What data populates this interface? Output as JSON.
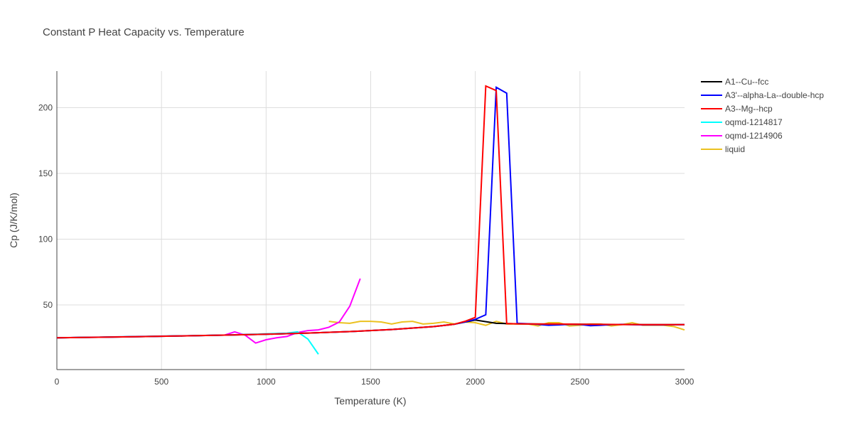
{
  "chart_data": {
    "type": "line",
    "title": "Constant P Heat Capacity vs. Temperature",
    "xlabel": "Temperature (K)",
    "ylabel": "Cp (J/K/mol)",
    "xlim": [
      0,
      3000
    ],
    "ylim": [
      0,
      228
    ],
    "xticks": [
      0,
      500,
      1000,
      1500,
      2000,
      2500,
      3000
    ],
    "yticks": [
      50,
      100,
      150,
      200
    ],
    "grid": true,
    "legend": "top-right",
    "series": [
      {
        "name": "A1--Cu--fcc",
        "color": "#000000",
        "x": [
          0,
          200,
          400,
          600,
          800,
          1000,
          1200,
          1400,
          1600,
          1800,
          1900,
          2000,
          2100,
          2200,
          2400,
          2600,
          2800,
          3000
        ],
        "y": [
          25,
          25.4,
          25.9,
          26.4,
          27,
          27.7,
          28.6,
          29.7,
          31.3,
          33.5,
          35.3,
          38.5,
          36,
          35.6,
          35.4,
          35.2,
          35,
          35
        ]
      },
      {
        "name": "A3'--alpha-La--double-hcp",
        "color": "#0000ff",
        "x": [
          0,
          200,
          400,
          600,
          800,
          1000,
          1200,
          1400,
          1600,
          1800,
          1900,
          1950,
          2000,
          2050,
          2100,
          2150,
          2200,
          2250,
          2300,
          2350,
          2400,
          2450,
          2500,
          2550,
          2600,
          2650,
          2700,
          2750,
          2800,
          2900,
          3000
        ],
        "y": [
          25,
          25.4,
          25.9,
          26.4,
          27,
          27.7,
          28.6,
          29.7,
          31.3,
          33.5,
          35.3,
          37,
          39,
          42.5,
          215.5,
          211,
          36,
          35.7,
          35.2,
          34.5,
          34.8,
          35.3,
          35.1,
          34.2,
          34.5,
          35,
          35.2,
          35,
          34.8,
          34.8,
          35
        ]
      },
      {
        "name": "A3--Mg--hcp",
        "color": "#ff0000",
        "x": [
          0,
          200,
          400,
          600,
          800,
          1000,
          1200,
          1400,
          1600,
          1800,
          1900,
          1950,
          2000,
          2050,
          2100,
          2150,
          2200,
          2300,
          2400,
          2500,
          2600,
          2700,
          2800,
          2900,
          3000
        ],
        "y": [
          25,
          25.4,
          25.9,
          26.4,
          27,
          27.7,
          28.6,
          29.7,
          31.3,
          33.5,
          35.3,
          37.5,
          40.5,
          216.5,
          213,
          35.8,
          35.6,
          35.5,
          35.5,
          35.3,
          35.2,
          35.1,
          35,
          35,
          35
        ]
      },
      {
        "name": "oqmd-1214817",
        "color": "#00ffff",
        "x": [
          0,
          200,
          400,
          600,
          800,
          900,
          1000,
          1100,
          1150,
          1200,
          1250
        ],
        "y": [
          25,
          25.5,
          26,
          26.5,
          27,
          27.5,
          28,
          28.5,
          29.5,
          24,
          12.5
        ]
      },
      {
        "name": "oqmd-1214906",
        "color": "#ff00ff",
        "x": [
          0,
          200,
          400,
          600,
          800,
          850,
          900,
          950,
          1000,
          1050,
          1100,
          1150,
          1200,
          1250,
          1300,
          1350,
          1400,
          1450
        ],
        "y": [
          25,
          25.5,
          26,
          26.5,
          27,
          29.5,
          27,
          21,
          23.5,
          25,
          26,
          29,
          30.5,
          31,
          33,
          37,
          49,
          70
        ]
      },
      {
        "name": "liquid",
        "color": "#ebc120",
        "x": [
          1300,
          1350,
          1400,
          1450,
          1500,
          1550,
          1600,
          1650,
          1700,
          1750,
          1800,
          1850,
          1900,
          1950,
          2000,
          2050,
          2100,
          2150,
          2200,
          2250,
          2300,
          2350,
          2400,
          2450,
          2500,
          2550,
          2600,
          2650,
          2700,
          2750,
          2800,
          2850,
          2900,
          2950,
          3000
        ],
        "y": [
          37.5,
          36.5,
          36,
          37.5,
          37.5,
          37,
          35.5,
          37,
          37.5,
          35.5,
          36,
          37,
          35.5,
          37,
          36.5,
          34.5,
          37.5,
          35.5,
          35.5,
          35.5,
          34,
          36.5,
          36.5,
          34,
          34.5,
          35.5,
          35.5,
          34,
          35,
          36.5,
          34.5,
          34.5,
          34.5,
          33.5,
          31
        ]
      }
    ]
  }
}
